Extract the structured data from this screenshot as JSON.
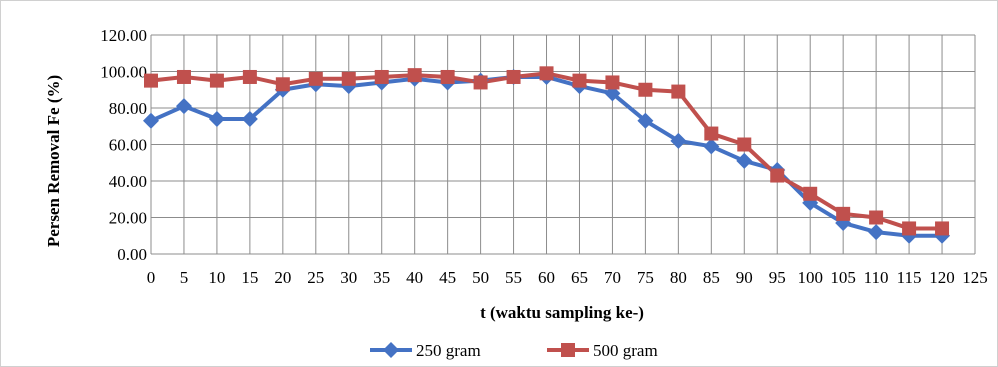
{
  "chart_data": {
    "type": "line",
    "xlabel": "t (waktu sampling ke-)",
    "ylabel": "Persen Removal Fe (%)",
    "x_ticks": [
      "0",
      "5",
      "10",
      "15",
      "20",
      "25",
      "30",
      "35",
      "40",
      "45",
      "50",
      "55",
      "60",
      "65",
      "70",
      "75",
      "80",
      "85",
      "90",
      "95",
      "100",
      "105",
      "110",
      "115",
      "120",
      "125"
    ],
    "y_ticks": [
      "0.00",
      "20.00",
      "40.00",
      "60.00",
      "80.00",
      "100.00",
      "120.00"
    ],
    "xlim": [
      0,
      125
    ],
    "ylim": [
      0,
      120
    ],
    "grid": true,
    "legend_position": "bottom",
    "x": [
      0,
      5,
      10,
      15,
      20,
      25,
      30,
      35,
      40,
      45,
      50,
      55,
      60,
      65,
      70,
      75,
      80,
      85,
      90,
      95,
      100,
      105,
      110,
      115,
      120
    ],
    "series": [
      {
        "name": "250 gram",
        "color": "#4472C4",
        "marker": "diamond",
        "values": [
          73,
          81,
          74,
          74,
          90,
          93,
          92,
          94,
          96,
          94,
          95,
          97,
          97,
          92,
          88,
          73,
          62,
          59,
          51,
          46,
          28,
          17,
          12,
          10,
          10
        ]
      },
      {
        "name": "500 gram",
        "color": "#C0504D",
        "marker": "square",
        "values": [
          95,
          97,
          95,
          97,
          93,
          96,
          96,
          97,
          98,
          97,
          94,
          97,
          99,
          95,
          94,
          90,
          89,
          66,
          60,
          43,
          33,
          22,
          20,
          14,
          14
        ]
      }
    ]
  }
}
